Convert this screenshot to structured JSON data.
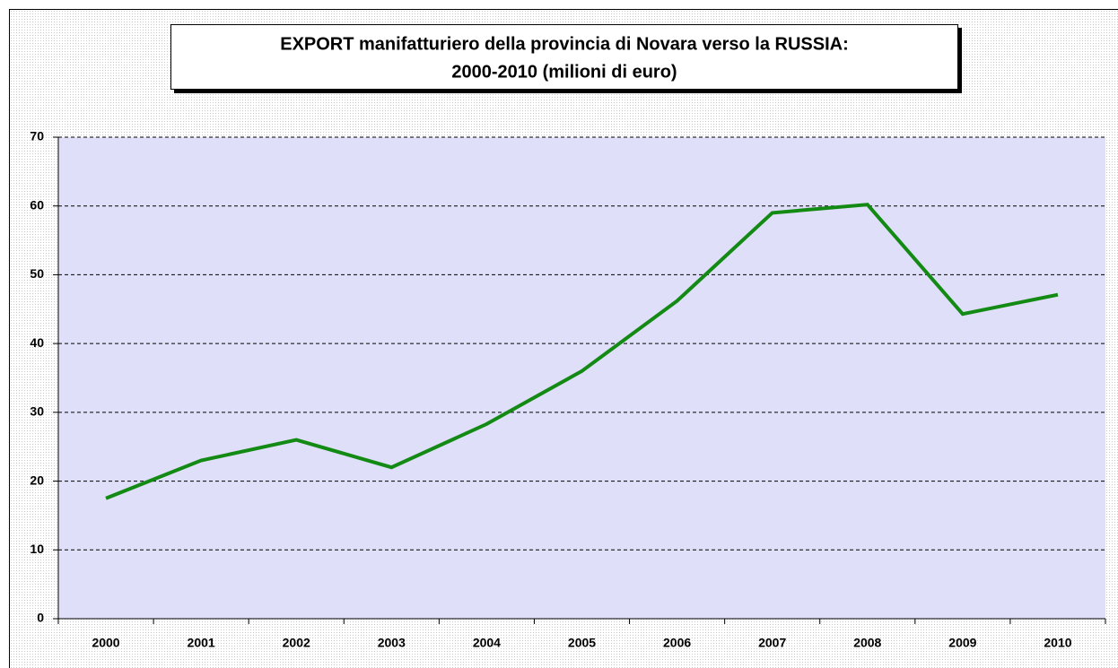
{
  "chart_data": {
    "type": "line",
    "title": [
      "EXPORT manifatturiero della provincia di Novara verso la RUSSIA:",
      "2000-2010 (milioni di euro)"
    ],
    "categories": [
      "2000",
      "2001",
      "2002",
      "2003",
      "2004",
      "2005",
      "2006",
      "2007",
      "2008",
      "2009",
      "2010"
    ],
    "series": [
      {
        "color": "#138a13",
        "values": [
          17.5,
          23,
          26,
          22,
          28.3,
          36,
          46.2,
          59,
          60.2,
          44.3,
          47.1
        ]
      }
    ],
    "ylim": [
      0,
      70
    ],
    "yticks": [
      0,
      10,
      20,
      30,
      40,
      50,
      60,
      70
    ],
    "grid": true
  }
}
